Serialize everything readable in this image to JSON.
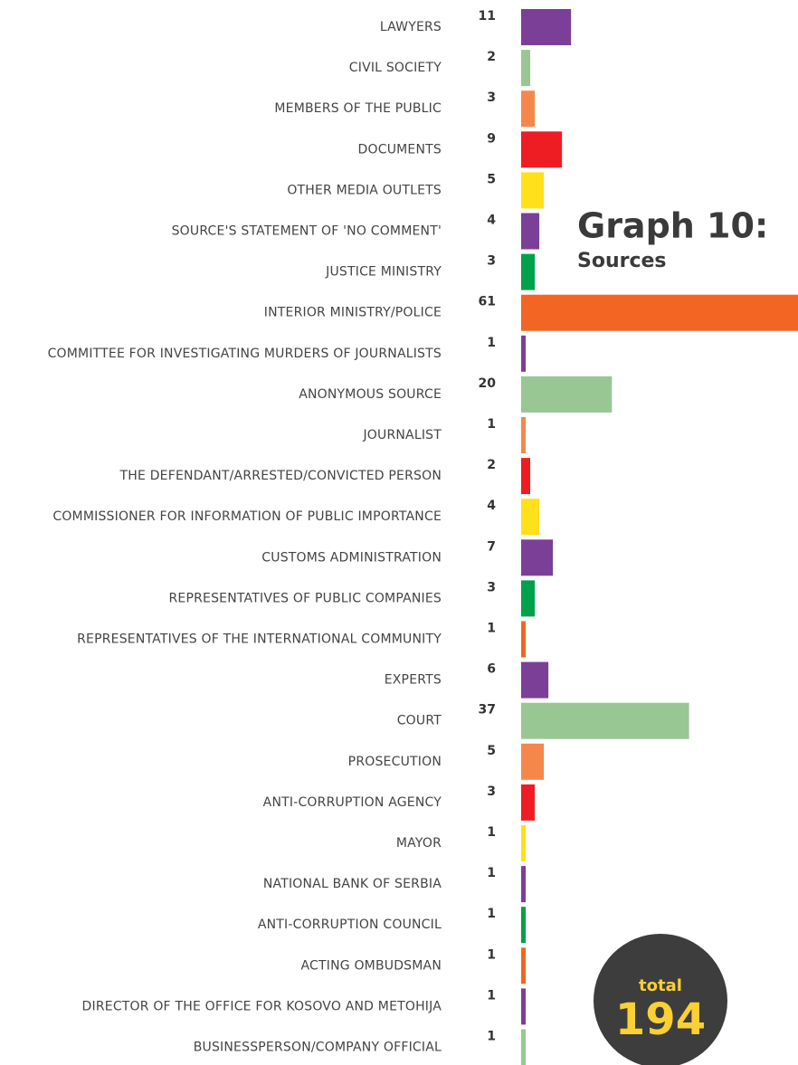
{
  "chart_data": {
    "type": "bar",
    "orientation": "horizontal",
    "title": "Graph 10:",
    "subtitle": "Sources",
    "categories": [
      "LAWYERS",
      "CIVIL SOCIETY",
      "MEMBERS OF THE PUBLIC",
      "DOCUMENTS",
      "OTHER MEDIA OUTLETS",
      "SOURCE'S STATEMENT OF 'NO COMMENT'",
      "JUSTICE MINISTRY",
      "INTERIOR MINISTRY/POLICE",
      "COMMITTEE FOR INVESTIGATING MURDERS OF JOURNALISTS",
      "ANONYMOUS SOURCE",
      "JOURNALIST",
      "THE DEFENDANT/ARRESTED/CONVICTED PERSON",
      "COMMISSIONER FOR INFORMATION OF PUBLIC IMPORTANCE",
      "CUSTOMS ADMINISTRATION",
      "REPRESENTATIVES OF PUBLIC COMPANIES",
      "REPRESENTATIVES OF THE INTERNATIONAL COMMUNITY",
      "EXPERTS",
      "COURT",
      "PROSECUTION",
      "ANTI-CORRUPTION AGENCY",
      "MAYOR",
      "NATIONAL BANK OF SERBIA",
      "ANTI-CORRUPTION COUNCIL",
      "ACTING OMBUDSMAN",
      "DIRECTOR OF THE OFFICE FOR KOSOVO AND METOHIJA",
      "BUSINESSPERSON/COMPANY OFFICIAL"
    ],
    "values": [
      11,
      2,
      3,
      9,
      5,
      4,
      3,
      61,
      1,
      20,
      1,
      2,
      4,
      7,
      3,
      1,
      6,
      37,
      5,
      3,
      1,
      1,
      1,
      1,
      1,
      1
    ],
    "colors": [
      "#7b3f98",
      "#98c793",
      "#f5874a",
      "#ee1d24",
      "#fee01b",
      "#7b3f98",
      "#00a14b",
      "#f26522",
      "#7b3f98",
      "#98c793",
      "#f5874a",
      "#ee1d24",
      "#fee01b",
      "#7b3f98",
      "#00a14b",
      "#f26522",
      "#7b3f98",
      "#98c793",
      "#f5874a",
      "#ee1d24",
      "#fee01b",
      "#7b3f98",
      "#00a14b",
      "#f26522",
      "#7b3f98",
      "#98c793"
    ],
    "annotations": [
      "total",
      "194"
    ]
  }
}
